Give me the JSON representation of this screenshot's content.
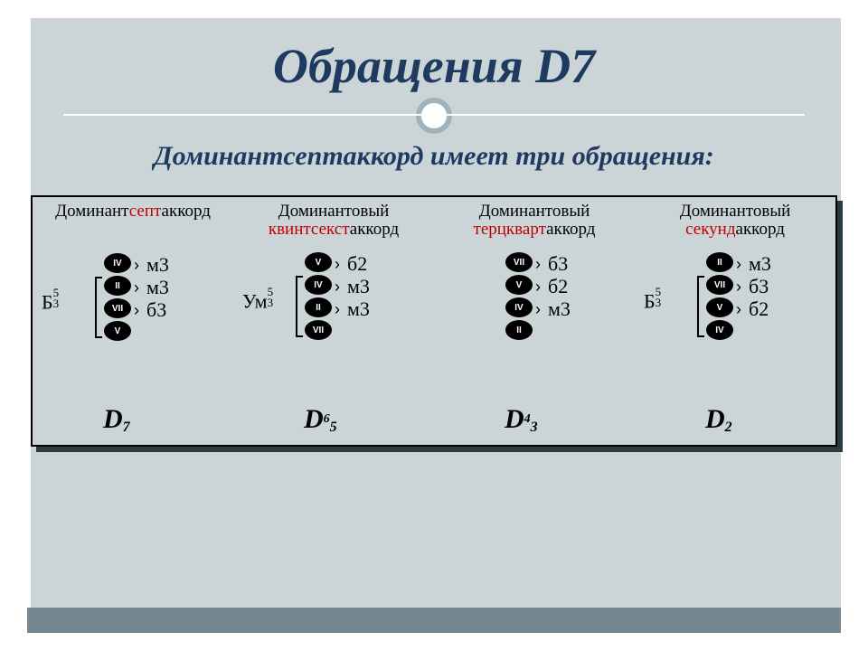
{
  "title": "Обращения  D7",
  "subtitle": "Доминантсептаккорд имеет три обращения:",
  "colors": {
    "bg": "#cbd5d8",
    "heading": "#1f3a5f",
    "red": "#c00000",
    "shadow": "#2a3b42",
    "ring": "#9db3bf",
    "footer": "#758892"
  },
  "chords": [
    {
      "name_pre": "Доминант",
      "name_red": "септ",
      "name_post": "аккорд",
      "bracket": "Б",
      "brk_sup": "5",
      "brk_sub": "3",
      "notes": [
        "IV",
        "II",
        "VII",
        "V"
      ],
      "intervals": [
        "м3",
        "м3",
        "б3"
      ],
      "symbol": "D",
      "sym_sup": "",
      "sym_sub": "7",
      "name_line2": false
    },
    {
      "name_pre": "Доминантовый",
      "name_red": "квинтсекст",
      "name_post": "аккорд",
      "bracket": "Ум",
      "brk_sup": "5",
      "brk_sub": "3",
      "notes": [
        "V",
        "IV",
        "II",
        "VII"
      ],
      "intervals": [
        "б2",
        "м3",
        "м3"
      ],
      "symbol": "D",
      "sym_sup": "6",
      "sym_sub": "5",
      "name_line2": true
    },
    {
      "name_pre": "Доминантовый",
      "name_red": "терцкварт",
      "name_post": "аккорд",
      "bracket": "",
      "brk_sup": "",
      "brk_sub": "",
      "notes": [
        "VII",
        "V",
        "IV",
        "II"
      ],
      "intervals": [
        "б3",
        "б2",
        "м3"
      ],
      "symbol": "D",
      "sym_sup": "4",
      "sym_sub": "3",
      "name_line2": true
    },
    {
      "name_pre": "Доминантовый",
      "name_red": "секунд",
      "name_post": "аккорд",
      "bracket": "Б",
      "brk_sup": "5",
      "brk_sub": "3",
      "notes": [
        "II",
        "VII",
        "V",
        "IV"
      ],
      "intervals": [
        "м3",
        "б3",
        "б2"
      ],
      "symbol": "D",
      "sym_sup": "",
      "sym_sub": "2",
      "name_line2": true
    }
  ]
}
